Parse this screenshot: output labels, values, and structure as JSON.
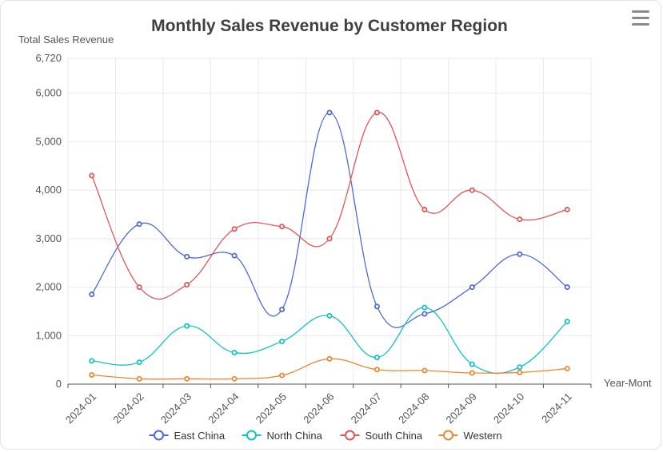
{
  "menu": {
    "icon": "hamburger-menu-icon"
  },
  "chart_data": {
    "type": "line",
    "title": "Monthly Sales Revenue by Customer Region",
    "ylabel": "Total Sales Revenue",
    "xlabel": "Year-Mont",
    "ylim": [
      0,
      6720
    ],
    "yticks": [
      0,
      1000,
      2000,
      3000,
      4000,
      5000,
      6000,
      6720
    ],
    "ytick_labels": [
      "0",
      "1,000",
      "2,000",
      "3,000",
      "4,000",
      "5,000",
      "6,000",
      "6,720"
    ],
    "categories": [
      "2024-01",
      "2024-02",
      "2024-03",
      "2024-04",
      "2024-05",
      "2024-06",
      "2024-07",
      "2024-08",
      "2024-09",
      "2024-10",
      "2024-11"
    ],
    "legend_position": "bottom",
    "grid": true,
    "smooth": true,
    "series": [
      {
        "name": "East China",
        "color": "#4f6bd8",
        "values": [
          1850,
          3300,
          2630,
          2650,
          1540,
          5600,
          1600,
          1450,
          2000,
          2680,
          2000
        ]
      },
      {
        "name": "North China",
        "color": "#12c2c7",
        "values": [
          480,
          450,
          1200,
          650,
          880,
          1410,
          550,
          1580,
          410,
          350,
          1290
        ]
      },
      {
        "name": "South China",
        "color": "#e25758",
        "values": [
          4300,
          2000,
          2050,
          3200,
          3250,
          3000,
          5600,
          3600,
          4000,
          3400,
          3600
        ]
      },
      {
        "name": "Western",
        "color": "#f0872f",
        "values": [
          190,
          110,
          110,
          110,
          180,
          520,
          300,
          280,
          230,
          240,
          320
        ]
      }
    ]
  }
}
